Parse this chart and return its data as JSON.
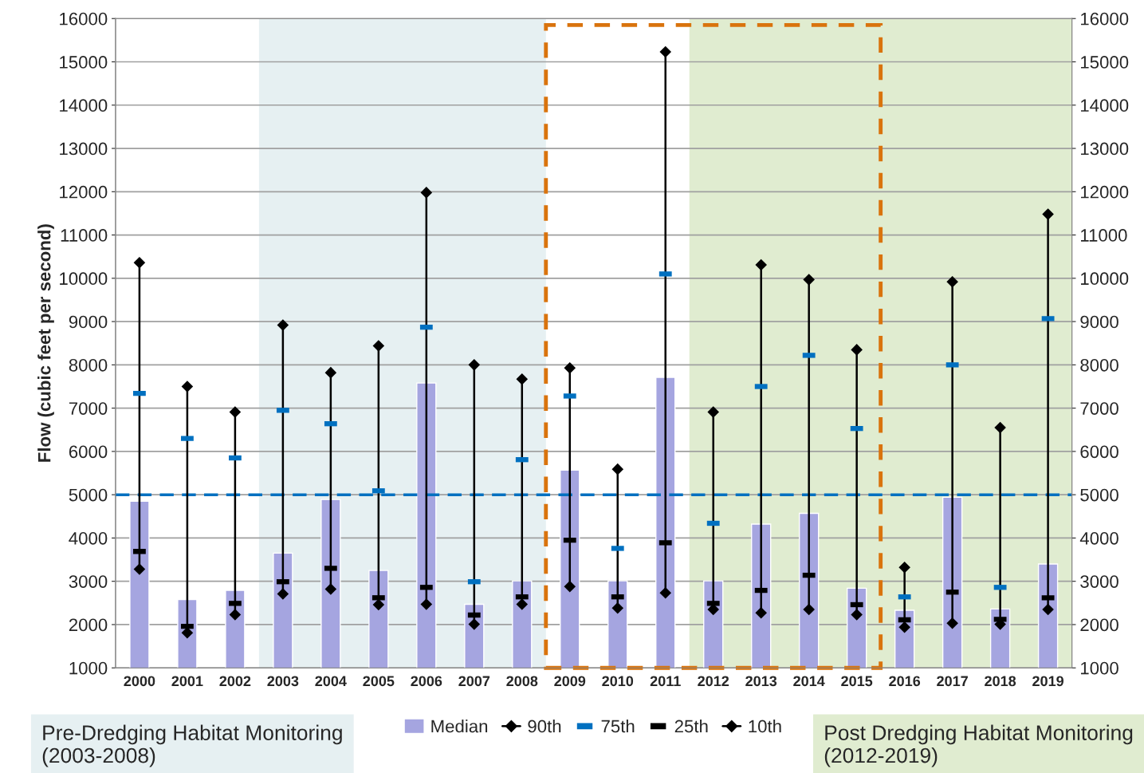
{
  "chart_data": {
    "type": "bar",
    "ylabel": "Flow (cubic feet per second)",
    "categories": [
      "2000",
      "2001",
      "2002",
      "2003",
      "2004",
      "2005",
      "2006",
      "2007",
      "2008",
      "2009",
      "2010",
      "2011",
      "2012",
      "2013",
      "2014",
      "2015",
      "2016",
      "2017",
      "2018",
      "2019"
    ],
    "series": [
      {
        "name": "Median",
        "color": "#a5a5e0",
        "values": [
          4850,
          2580,
          2790,
          3650,
          4890,
          3250,
          7580,
          2470,
          3010,
          5570,
          3010,
          7710,
          3010,
          4320,
          4570,
          2840,
          2330,
          4940,
          2360,
          3400
        ]
      },
      {
        "name": "90th",
        "type": "scatter",
        "marker": "diamond",
        "color": "#000000",
        "values": [
          10360,
          7500,
          6910,
          8920,
          7820,
          8440,
          11980,
          8000,
          7670,
          7930,
          5590,
          15230,
          6910,
          10310,
          9970,
          8350,
          3320,
          9920,
          6550,
          11480
        ]
      },
      {
        "name": "75th",
        "type": "scatter",
        "marker": "square",
        "color": "#0070c0",
        "values": [
          7340,
          6300,
          5850,
          6950,
          6640,
          5090,
          8870,
          2990,
          5810,
          7280,
          3760,
          10100,
          4340,
          7500,
          8220,
          6530,
          2640,
          8000,
          2860,
          9070
        ]
      },
      {
        "name": "25th",
        "type": "scatter",
        "marker": "square",
        "color": "#000000",
        "values": [
          3690,
          1960,
          2490,
          2990,
          3300,
          2620,
          2860,
          2220,
          2640,
          3950,
          2640,
          3890,
          2490,
          2790,
          3140,
          2460,
          2110,
          2750,
          2120,
          2620
        ]
      },
      {
        "name": "10th",
        "type": "scatter",
        "marker": "diamond",
        "color": "#000000",
        "values": [
          3280,
          1810,
          2230,
          2710,
          2820,
          2460,
          2470,
          2010,
          2470,
          2880,
          2380,
          2730,
          2350,
          2270,
          2350,
          2230,
          1940,
          2030,
          2010,
          2350
        ]
      }
    ],
    "ylim": [
      1000,
      16000
    ],
    "yticks": [
      1000,
      2000,
      3000,
      4000,
      5000,
      6000,
      7000,
      8000,
      9000,
      10000,
      11000,
      12000,
      13000,
      14000,
      15000,
      16000
    ],
    "y2lim": [
      1000,
      16000
    ],
    "y2ticks": [
      1000,
      2000,
      3000,
      4000,
      5000,
      6000,
      7000,
      8000,
      9000,
      10000,
      11000,
      12000,
      13000,
      14000,
      15000,
      16000
    ],
    "ref_lines": [
      {
        "axis": "y",
        "value": 5000,
        "color": "#0070c0",
        "line_style": "dashed"
      }
    ],
    "bands": [
      {
        "axis": "x",
        "from": "2003",
        "to": "2008",
        "label": "Pre-Dredging Habitat Monitoring (2003-2008)",
        "color": "#e6f0f2"
      },
      {
        "axis": "x",
        "from": "2012",
        "to": "2019",
        "label": "Post Dredging Habitat Monitoring (2012-2019)",
        "color": "#e0ecd0"
      }
    ],
    "grid": "y",
    "legend": "bottom"
  }
}
